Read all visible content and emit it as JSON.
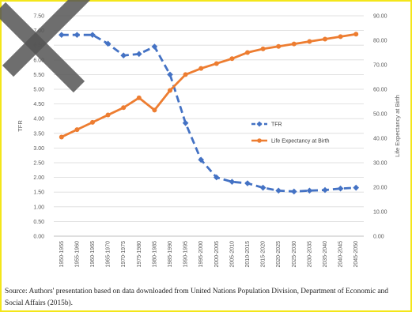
{
  "chart_data": {
    "type": "line",
    "categories": [
      "1950-1955",
      "1955-1960",
      "1960-1965",
      "1965-1970",
      "1970-1975",
      "1975-1980",
      "1980-1985",
      "1985-1990",
      "1990-1995",
      "1995-2000",
      "2000-2005",
      "2005-2010",
      "2010-2015",
      "2015-2020",
      "2020-2025",
      "2025-2030",
      "2030-2035",
      "2035-2040",
      "2040-2045",
      "2045-2050"
    ],
    "series": [
      {
        "name": "TFR",
        "axis": "left",
        "color": "#4472c4",
        "style": "dashed-marker-diamond",
        "values": [
          6.85,
          6.85,
          6.85,
          6.55,
          6.15,
          6.2,
          6.45,
          5.5,
          3.85,
          2.6,
          2.0,
          1.85,
          1.8,
          1.65,
          1.55,
          1.52,
          1.55,
          1.57,
          1.62,
          1.65
        ]
      },
      {
        "name": "Life Expectancy at Birth",
        "axis": "right",
        "color": "#ed7d31",
        "style": "solid-marker-circle",
        "values": [
          40.5,
          43.5,
          46.5,
          49.5,
          52.5,
          56.5,
          51.5,
          59.5,
          66,
          68.5,
          70.5,
          72.5,
          75,
          76.5,
          77.5,
          78.5,
          79.5,
          80.5,
          81.5,
          82.5
        ]
      }
    ],
    "y_left": {
      "label": "TFR",
      "ylim": [
        0,
        7.5
      ],
      "ticks": [
        "0.00",
        "0.50",
        "1.00",
        "1.50",
        "2.00",
        "2.50",
        "3.00",
        "3.50",
        "4.00",
        "4.50",
        "5.00",
        "5.50",
        "6.00",
        "6.50",
        "7.00",
        "7.50"
      ]
    },
    "y_right": {
      "label": "Life Expectancy at Birth",
      "ylim": [
        0,
        90
      ],
      "ticks": [
        "0.00",
        "10.00",
        "20.00",
        "30.00",
        "40.00",
        "50.00",
        "60.00",
        "70.00",
        "80.00",
        "90.00"
      ]
    },
    "grid": true,
    "legend": {
      "placement": "center-right",
      "entries": [
        "TFR",
        "Life Expectancy at Birth"
      ]
    }
  },
  "source_note": "Source: Authors' presentation based on data downloaded from United Nations Population Division, Department of Economic and Social Affairs (2015b).",
  "colors": {
    "frame_border": "#f4e61a",
    "watermark": "#555555",
    "grid": "#d9d9d9"
  }
}
